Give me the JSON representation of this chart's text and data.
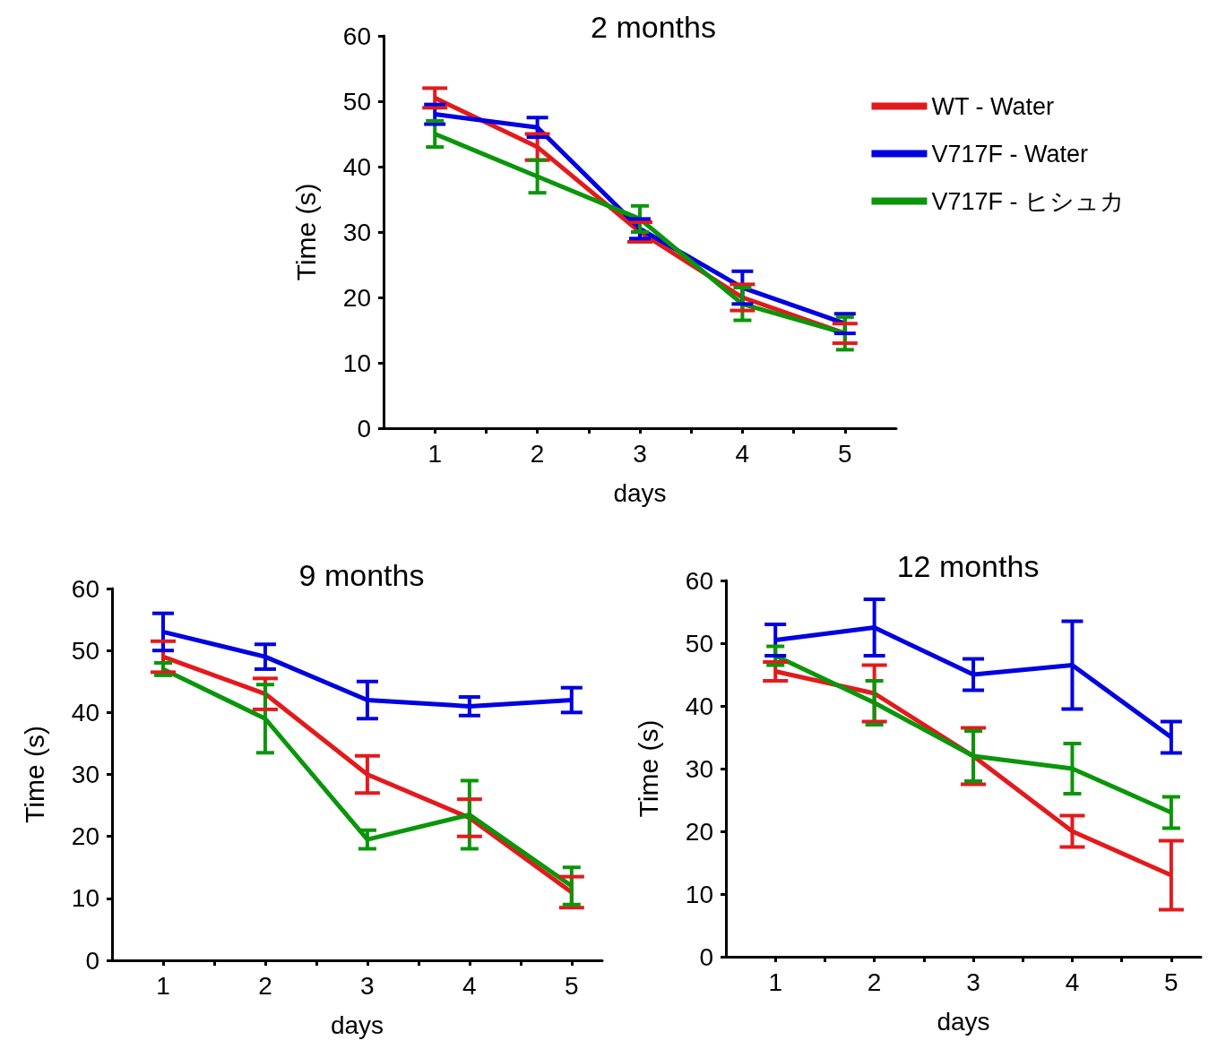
{
  "chart_data": [
    {
      "type": "line",
      "title": "2 months",
      "xlabel": "days",
      "ylabel": "Time (s)",
      "x": [
        1,
        2,
        3,
        4,
        5
      ],
      "xlim": [
        0.5,
        5.5
      ],
      "xticks": [
        1,
        {
          "value": 1.5,
          "label": null
        },
        2,
        {
          "value": 2.5,
          "label": null
        },
        3,
        {
          "value": 3.5,
          "label": null
        },
        4,
        {
          "value": 4.5,
          "label": null
        },
        5
      ],
      "ylim": [
        0,
        60
      ],
      "yticks": [
        0,
        10,
        20,
        30,
        40,
        50,
        60
      ],
      "grid": false,
      "legend": "top right",
      "marker": "none",
      "line_style": "solid",
      "series": [
        {
          "name": "WT - Water",
          "color": "#e31a1c",
          "values": [
            50.5,
            43,
            30,
            20,
            14.5
          ],
          "errors": [
            1.5,
            2,
            1.5,
            2,
            1.5
          ]
        },
        {
          "name": "V717F - Water",
          "color": "#0000e0",
          "values": [
            48,
            46,
            30.5,
            21.5,
            16
          ],
          "errors": [
            1.5,
            1.5,
            1.5,
            2.5,
            1.5
          ]
        },
        {
          "name": "V717F - ヒシュカ",
          "color": "#0a960a",
          "values": [
            45,
            38.5,
            32,
            19,
            14.5
          ],
          "errors": [
            2,
            2.5,
            2,
            2.5,
            2.5
          ]
        }
      ]
    },
    {
      "type": "line",
      "title": "9 months",
      "xlabel": "days",
      "ylabel": "Time (s)",
      "x": [
        1,
        2,
        3,
        4,
        5
      ],
      "xlim": [
        0.5,
        5.3
      ],
      "xticks": [
        1,
        {
          "value": 1.5,
          "label": null
        },
        2,
        {
          "value": 2.5,
          "label": null
        },
        3,
        {
          "value": 3.5,
          "label": null
        },
        4,
        {
          "value": 4.5,
          "label": null
        },
        5
      ],
      "ylim": [
        0,
        60
      ],
      "yticks": [
        0,
        10,
        20,
        30,
        40,
        50,
        60
      ],
      "grid": false,
      "marker": "none",
      "line_style": "solid",
      "series": [
        {
          "color": "#e31a1c",
          "values": [
            49,
            43,
            30,
            23,
            11
          ],
          "errors": [
            2.5,
            2.5,
            3,
            3,
            2.5
          ]
        },
        {
          "color": "#0000e0",
          "values": [
            53,
            49,
            42,
            41,
            42
          ],
          "errors": [
            3,
            2,
            3,
            1.5,
            2
          ]
        },
        {
          "color": "#0a960a",
          "values": [
            47,
            39,
            19.5,
            23.5,
            12
          ],
          "errors": [
            1,
            5.5,
            1.5,
            5.5,
            3
          ]
        }
      ]
    },
    {
      "type": "line",
      "title": "12 months",
      "xlabel": "days",
      "ylabel": "Time (s)",
      "x": [
        1,
        2,
        3,
        4,
        5
      ],
      "xlim": [
        0.5,
        5.3
      ],
      "xticks": [
        1,
        {
          "value": 1.5,
          "label": null
        },
        2,
        {
          "value": 2.5,
          "label": null
        },
        3,
        {
          "value": 3.5,
          "label": null
        },
        4,
        {
          "value": 4.5,
          "label": null
        },
        5
      ],
      "ylim": [
        0,
        60
      ],
      "yticks": [
        0,
        10,
        20,
        30,
        40,
        50,
        60
      ],
      "grid": false,
      "marker": "none",
      "line_style": "solid",
      "series": [
        {
          "color": "#e31a1c",
          "values": [
            45.5,
            42,
            32,
            20,
            13
          ],
          "errors": [
            1.5,
            4.5,
            4.5,
            2.5,
            5.5
          ]
        },
        {
          "color": "#0000e0",
          "values": [
            50.5,
            52.5,
            45,
            46.5,
            35
          ],
          "errors": [
            2.5,
            4.5,
            2.5,
            7,
            2.5
          ]
        },
        {
          "color": "#0a960a",
          "values": [
            48,
            40.5,
            32,
            30,
            23
          ],
          "errors": [
            1.5,
            3.5,
            4,
            4,
            2.5
          ]
        }
      ]
    }
  ]
}
